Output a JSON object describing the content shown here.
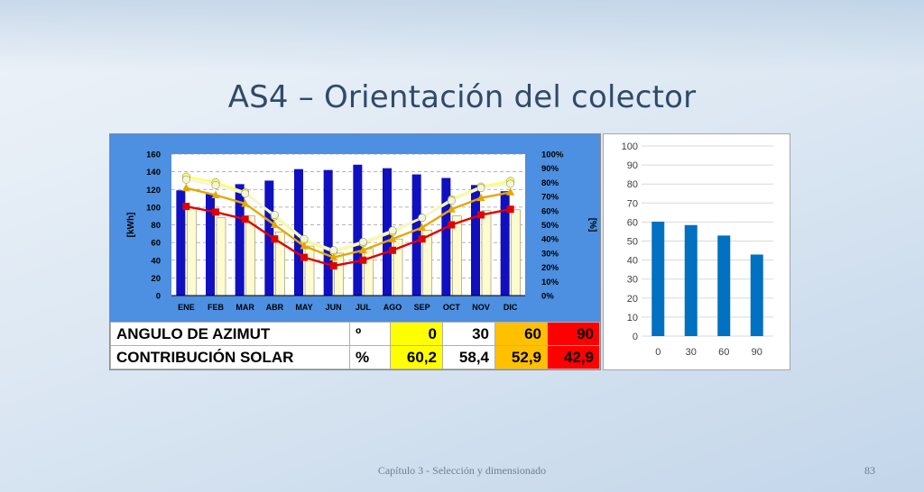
{
  "slide": {
    "title": "AS4 – Orientación del colector",
    "footer": "Capítulo 3 - Selección y dimensionado",
    "page_number": "83"
  },
  "table": {
    "rows": [
      {
        "label": "ANGULO DE AZIMUT",
        "unit": "º",
        "values": [
          "0",
          "30",
          "60",
          "90"
        ]
      },
      {
        "label": "CONTRIBUCIÓN SOLAR",
        "unit": "%",
        "values": [
          "60,2",
          "58,4",
          "52,9",
          "42,9"
        ]
      }
    ],
    "highlight_colors": [
      "#ffff00",
      "#ffffff",
      "#ffc000",
      "#ff0000"
    ]
  },
  "chart_data": [
    {
      "type": "bar",
      "title": "",
      "xlabel": "",
      "ylabel": "[kWh]",
      "y2label": "[%]",
      "ylim": [
        0,
        160
      ],
      "y2lim": [
        0,
        100
      ],
      "y_ticks": [
        "0",
        "20",
        "40",
        "60",
        "80",
        "100",
        "120",
        "140",
        "160"
      ],
      "y2_ticks": [
        "0%",
        "10%",
        "20%",
        "30%",
        "40%",
        "50%",
        "60%",
        "70%",
        "80%",
        "90%",
        "100%"
      ],
      "categories": [
        "ENE",
        "FEB",
        "MAR",
        "ABR",
        "MAY",
        "JUN",
        "JUL",
        "AGO",
        "SEP",
        "OCT",
        "NOV",
        "DIC"
      ],
      "grid": true,
      "background": "#4d8fe0",
      "bar_series": [
        {
          "color": "#1010c0",
          "values": [
            119,
            115,
            126,
            130,
            143,
            142,
            148,
            144,
            137,
            133,
            125,
            118
          ]
        },
        {
          "color": "#fffbd0",
          "values": [
            99,
            88,
            90,
            72,
            56,
            48,
            53,
            64,
            74,
            90,
            96,
            97
          ]
        }
      ],
      "line_series": [
        {
          "color": "#fffe60",
          "marker": "circle",
          "values": [
            84,
            80,
            73,
            56,
            39,
            31,
            37,
            45,
            55,
            68,
            77,
            81
          ]
        },
        {
          "color": "#f2f5d8",
          "marker": "circle",
          "values": [
            82,
            78,
            72,
            57,
            40,
            32,
            38,
            46,
            55,
            67,
            76,
            79
          ]
        },
        {
          "color": "#e6a800",
          "marker": "triangle",
          "values": [
            76,
            71,
            65,
            50,
            35,
            27,
            32,
            40,
            48,
            61,
            69,
            73
          ]
        },
        {
          "color": "#e00000",
          "marker": "square",
          "values": [
            63,
            59,
            54,
            40,
            27,
            21,
            25,
            32,
            40,
            50,
            57,
            61
          ]
        }
      ]
    },
    {
      "type": "bar",
      "title": "",
      "categories": [
        "0",
        "30",
        "60",
        "90"
      ],
      "values": [
        60.2,
        58.4,
        52.9,
        42.9
      ],
      "ylim": [
        0,
        100
      ],
      "y_ticks": [
        "0",
        "10",
        "20",
        "30",
        "40",
        "50",
        "60",
        "70",
        "80",
        "90",
        "100"
      ],
      "color": "#0070c0",
      "grid": true
    }
  ]
}
